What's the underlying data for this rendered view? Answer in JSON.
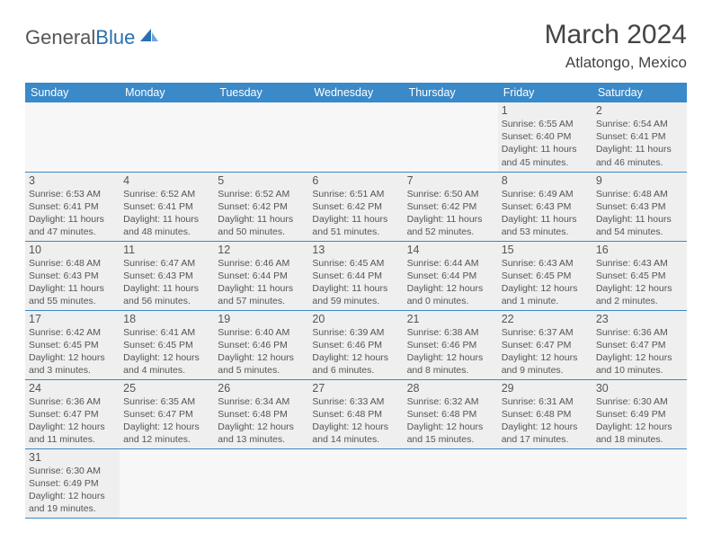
{
  "brand": {
    "part1": "General",
    "part2": "Blue"
  },
  "title": "March 2024",
  "location": "Atlatongo, Mexico",
  "colors": {
    "header_bg": "#3a89c9",
    "header_text": "#ffffff",
    "cell_bg": "#efefef",
    "border": "#3a89c9",
    "text": "#555555",
    "brand2": "#2b6fb0"
  },
  "daynames": [
    "Sunday",
    "Monday",
    "Tuesday",
    "Wednesday",
    "Thursday",
    "Friday",
    "Saturday"
  ],
  "weeks": [
    [
      null,
      null,
      null,
      null,
      null,
      {
        "n": "1",
        "sr": "6:55 AM",
        "ss": "6:40 PM",
        "dl": "11 hours and 45 minutes."
      },
      {
        "n": "2",
        "sr": "6:54 AM",
        "ss": "6:41 PM",
        "dl": "11 hours and 46 minutes."
      }
    ],
    [
      {
        "n": "3",
        "sr": "6:53 AM",
        "ss": "6:41 PM",
        "dl": "11 hours and 47 minutes."
      },
      {
        "n": "4",
        "sr": "6:52 AM",
        "ss": "6:41 PM",
        "dl": "11 hours and 48 minutes."
      },
      {
        "n": "5",
        "sr": "6:52 AM",
        "ss": "6:42 PM",
        "dl": "11 hours and 50 minutes."
      },
      {
        "n": "6",
        "sr": "6:51 AM",
        "ss": "6:42 PM",
        "dl": "11 hours and 51 minutes."
      },
      {
        "n": "7",
        "sr": "6:50 AM",
        "ss": "6:42 PM",
        "dl": "11 hours and 52 minutes."
      },
      {
        "n": "8",
        "sr": "6:49 AM",
        "ss": "6:43 PM",
        "dl": "11 hours and 53 minutes."
      },
      {
        "n": "9",
        "sr": "6:48 AM",
        "ss": "6:43 PM",
        "dl": "11 hours and 54 minutes."
      }
    ],
    [
      {
        "n": "10",
        "sr": "6:48 AM",
        "ss": "6:43 PM",
        "dl": "11 hours and 55 minutes."
      },
      {
        "n": "11",
        "sr": "6:47 AM",
        "ss": "6:43 PM",
        "dl": "11 hours and 56 minutes."
      },
      {
        "n": "12",
        "sr": "6:46 AM",
        "ss": "6:44 PM",
        "dl": "11 hours and 57 minutes."
      },
      {
        "n": "13",
        "sr": "6:45 AM",
        "ss": "6:44 PM",
        "dl": "11 hours and 59 minutes."
      },
      {
        "n": "14",
        "sr": "6:44 AM",
        "ss": "6:44 PM",
        "dl": "12 hours and 0 minutes."
      },
      {
        "n": "15",
        "sr": "6:43 AM",
        "ss": "6:45 PM",
        "dl": "12 hours and 1 minute."
      },
      {
        "n": "16",
        "sr": "6:43 AM",
        "ss": "6:45 PM",
        "dl": "12 hours and 2 minutes."
      }
    ],
    [
      {
        "n": "17",
        "sr": "6:42 AM",
        "ss": "6:45 PM",
        "dl": "12 hours and 3 minutes."
      },
      {
        "n": "18",
        "sr": "6:41 AM",
        "ss": "6:45 PM",
        "dl": "12 hours and 4 minutes."
      },
      {
        "n": "19",
        "sr": "6:40 AM",
        "ss": "6:46 PM",
        "dl": "12 hours and 5 minutes."
      },
      {
        "n": "20",
        "sr": "6:39 AM",
        "ss": "6:46 PM",
        "dl": "12 hours and 6 minutes."
      },
      {
        "n": "21",
        "sr": "6:38 AM",
        "ss": "6:46 PM",
        "dl": "12 hours and 8 minutes."
      },
      {
        "n": "22",
        "sr": "6:37 AM",
        "ss": "6:47 PM",
        "dl": "12 hours and 9 minutes."
      },
      {
        "n": "23",
        "sr": "6:36 AM",
        "ss": "6:47 PM",
        "dl": "12 hours and 10 minutes."
      }
    ],
    [
      {
        "n": "24",
        "sr": "6:36 AM",
        "ss": "6:47 PM",
        "dl": "12 hours and 11 minutes."
      },
      {
        "n": "25",
        "sr": "6:35 AM",
        "ss": "6:47 PM",
        "dl": "12 hours and 12 minutes."
      },
      {
        "n": "26",
        "sr": "6:34 AM",
        "ss": "6:48 PM",
        "dl": "12 hours and 13 minutes."
      },
      {
        "n": "27",
        "sr": "6:33 AM",
        "ss": "6:48 PM",
        "dl": "12 hours and 14 minutes."
      },
      {
        "n": "28",
        "sr": "6:32 AM",
        "ss": "6:48 PM",
        "dl": "12 hours and 15 minutes."
      },
      {
        "n": "29",
        "sr": "6:31 AM",
        "ss": "6:48 PM",
        "dl": "12 hours and 17 minutes."
      },
      {
        "n": "30",
        "sr": "6:30 AM",
        "ss": "6:49 PM",
        "dl": "12 hours and 18 minutes."
      }
    ],
    [
      {
        "n": "31",
        "sr": "6:30 AM",
        "ss": "6:49 PM",
        "dl": "12 hours and 19 minutes."
      },
      null,
      null,
      null,
      null,
      null,
      null
    ]
  ],
  "labels": {
    "sunrise": "Sunrise: ",
    "sunset": "Sunset: ",
    "daylight": "Daylight: "
  }
}
